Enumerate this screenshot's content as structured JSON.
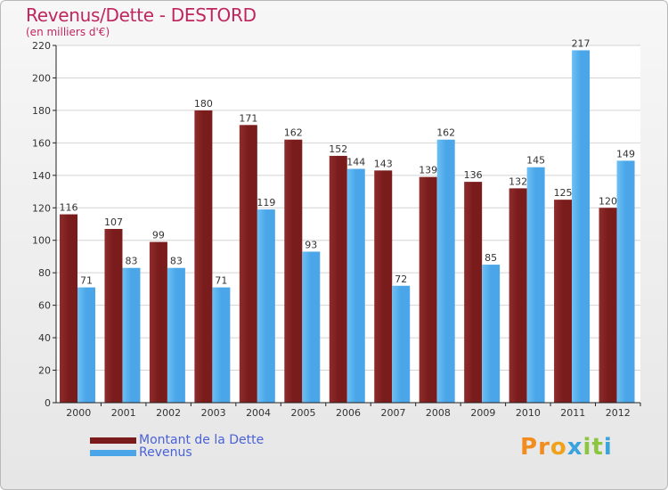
{
  "title": "Revenus/Dette - DESTORD",
  "subtitle": "(en milliers d'€)",
  "logo": {
    "text": "Proxiti",
    "letters": [
      {
        "ch": "P",
        "color": "#f28c1e"
      },
      {
        "ch": "r",
        "color": "#f28c1e"
      },
      {
        "ch": "o",
        "color": "#f0a21b"
      },
      {
        "ch": "x",
        "color": "#3aa3dc"
      },
      {
        "ch": "i",
        "color": "#8cc63f"
      },
      {
        "ch": "t",
        "color": "#8cc63f"
      },
      {
        "ch": "i",
        "color": "#3aa3dc"
      }
    ]
  },
  "colors": {
    "dette": "#7a1c1c",
    "dette_light": "#8f2c2c",
    "revenus": "#4aa6e8",
    "revenus_light": "#6cc0f4",
    "axis": "#222222",
    "grid": "#d4d4d4",
    "text": "#333333"
  },
  "chart_data": {
    "type": "bar",
    "title": "Revenus/Dette - DESTORD",
    "subtitle": "(en milliers d'€)",
    "categories": [
      "2000",
      "2001",
      "2002",
      "2003",
      "2004",
      "2005",
      "2006",
      "2007",
      "2008",
      "2009",
      "2010",
      "2011",
      "2012"
    ],
    "series": [
      {
        "name": "Montant de la Dette",
        "values": [
          116,
          107,
          99,
          180,
          171,
          162,
          152,
          143,
          139,
          136,
          132,
          125,
          120
        ]
      },
      {
        "name": "Revenus",
        "values": [
          71,
          83,
          83,
          71,
          119,
          93,
          144,
          72,
          162,
          85,
          145,
          217,
          149
        ]
      }
    ],
    "ylim": [
      0,
      220
    ],
    "yticks": [
      0,
      20,
      40,
      60,
      80,
      100,
      120,
      140,
      160,
      180,
      200,
      220
    ],
    "grid": true,
    "legend_position": "bottom-left"
  }
}
